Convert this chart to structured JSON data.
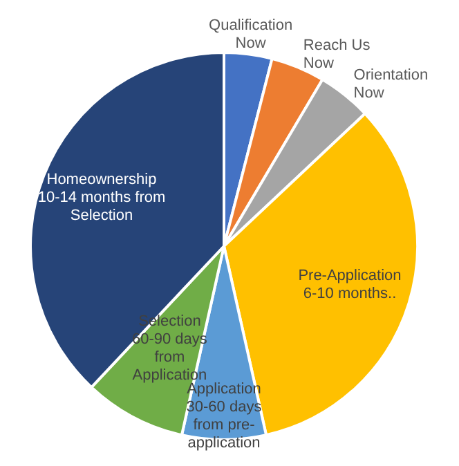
{
  "chart_data": {
    "type": "pie",
    "categories": [
      "Qualification\nNow",
      "Reach Us\nNow",
      "Orientation\nNow",
      "Pre-Application\n6-10 months..",
      "Application\n30-60 days\nfrom pre-\napplication",
      "Selection\n60-90 days\nfrom\nApplication",
      "Homeownership\n10-14 months from\nSelection"
    ],
    "values": [
      4,
      4.5,
      4.5,
      33.5,
      7,
      8.5,
      38
    ],
    "colors": [
      "#4472c4",
      "#ed7d31",
      "#a5a5a5",
      "#ffc000",
      "#5b9bd5",
      "#70ad47",
      "#264478"
    ],
    "legend": false
  }
}
